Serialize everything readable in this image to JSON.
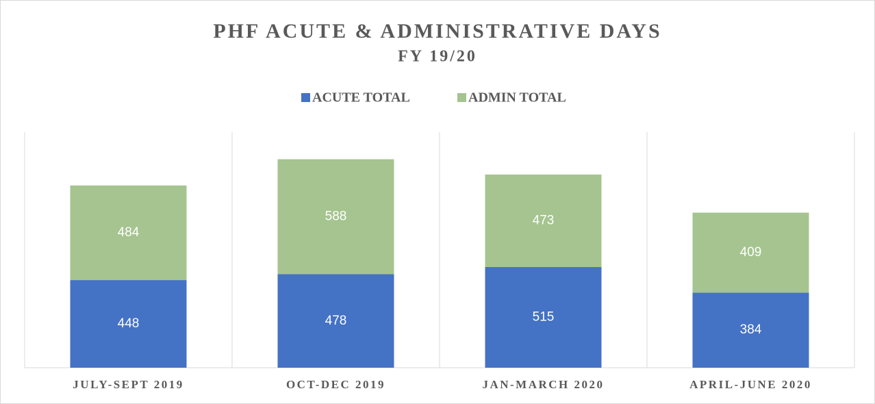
{
  "chart_data": {
    "type": "stacked_bar",
    "title": "PHF ACUTE & ADMINISTRATIVE DAYS",
    "subtitle": "FY 19/20",
    "categories": [
      "JULY-SEPT 2019",
      "OCT-DEC 2019",
      "JAN-MARCH 2020",
      "APRIL-JUNE 2020"
    ],
    "series": [
      {
        "name": "ACUTE TOTAL",
        "color": "#4472c4",
        "values": [
          448,
          478,
          515,
          384
        ]
      },
      {
        "name": "ADMIN TOTAL",
        "color": "#a5c48f",
        "values": [
          484,
          588,
          473,
          409
        ]
      }
    ],
    "legend": "top"
  }
}
